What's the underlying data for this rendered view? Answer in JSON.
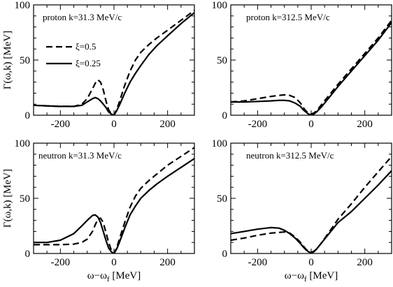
{
  "chart_data": [
    {
      "type": "line",
      "title": "proton k=31.3 MeV/c",
      "xlabel": "",
      "ylabel": "Γ(ω,k) [MeV]",
      "xlim": [
        -300,
        300
      ],
      "ylim": [
        0,
        100
      ],
      "xticks": [
        -200,
        0,
        200
      ],
      "yticks": [
        0,
        50,
        100
      ],
      "grid": false,
      "legend": {
        "placement": "upper-left",
        "entries": [
          {
            "label": "ξ=0.5",
            "style": "dashed"
          },
          {
            "label": "ξ=0.25",
            "style": "solid"
          }
        ]
      },
      "series": [
        {
          "name": "ξ=0.5",
          "style": "dashed",
          "x": [
            -300,
            -250,
            -200,
            -150,
            -120,
            -100,
            -80,
            -70,
            -60,
            -50,
            -40,
            -30,
            -20,
            -10,
            0,
            10,
            20,
            40,
            60,
            80,
            100,
            130,
            160,
            200,
            250,
            300
          ],
          "y": [
            9,
            8.5,
            8,
            8,
            10,
            15,
            24,
            29,
            32,
            30,
            23,
            13,
            5,
            1,
            0,
            5,
            12,
            27,
            40,
            50,
            57,
            64,
            70,
            77,
            86,
            95
          ]
        },
        {
          "name": "ξ=0.25",
          "style": "solid",
          "x": [
            -300,
            -250,
            -200,
            -150,
            -120,
            -100,
            -80,
            -70,
            -60,
            -50,
            -40,
            -30,
            -20,
            -10,
            0,
            10,
            20,
            40,
            60,
            80,
            100,
            130,
            160,
            200,
            250,
            300
          ],
          "y": [
            9,
            8.5,
            8,
            8,
            9,
            12,
            15,
            16,
            15,
            13,
            10,
            7,
            3,
            1,
            0,
            4,
            9,
            20,
            30,
            38,
            45,
            55,
            63,
            72,
            83,
            93
          ]
        }
      ]
    },
    {
      "type": "line",
      "title": "proton k=312.5 MeV/c",
      "xlabel": "",
      "ylabel": "",
      "xlim": [
        -300,
        300
      ],
      "ylim": [
        0,
        100
      ],
      "xticks": [
        -200,
        0,
        200
      ],
      "yticks": [
        0,
        50,
        100
      ],
      "grid": false,
      "series": [
        {
          "name": "ξ=0.5",
          "style": "dashed",
          "x": [
            -300,
            -250,
            -200,
            -150,
            -120,
            -100,
            -80,
            -60,
            -40,
            -30,
            -20,
            -10,
            0,
            10,
            20,
            40,
            60,
            80,
            100,
            150,
            200,
            250,
            300
          ],
          "y": [
            12,
            13,
            15,
            17,
            18,
            18.5,
            18,
            16,
            11,
            7,
            4,
            2,
            1,
            2,
            4,
            10,
            16,
            22,
            28,
            42,
            56,
            70,
            86
          ]
        },
        {
          "name": "ξ=0.25",
          "style": "solid",
          "x": [
            -300,
            -250,
            -200,
            -150,
            -120,
            -100,
            -80,
            -60,
            -40,
            -30,
            -20,
            -10,
            0,
            10,
            20,
            40,
            60,
            80,
            100,
            150,
            200,
            250,
            300
          ],
          "y": [
            12,
            12,
            12.5,
            13,
            13.5,
            13.5,
            13,
            11,
            8,
            5,
            3,
            1,
            0.5,
            1,
            3,
            8,
            14,
            20,
            26,
            40,
            54,
            68,
            84
          ]
        }
      ]
    },
    {
      "type": "line",
      "title": "neutron k=31.3 MeV/c",
      "xlabel": "ω−ω_f [MeV]",
      "ylabel": "Γ(ω,k) [MeV]",
      "xlim": [
        -300,
        300
      ],
      "ylim": [
        0,
        100
      ],
      "xticks": [
        -200,
        0,
        200
      ],
      "yticks": [
        0,
        50,
        100
      ],
      "grid": false,
      "series": [
        {
          "name": "ξ=0.5",
          "style": "dashed",
          "x": [
            -300,
            -250,
            -200,
            -150,
            -120,
            -100,
            -80,
            -70,
            -60,
            -50,
            -40,
            -30,
            -20,
            -10,
            0,
            10,
            20,
            40,
            60,
            80,
            100,
            130,
            160,
            200,
            250,
            300
          ],
          "y": [
            8,
            8,
            8,
            8.5,
            10,
            13,
            20,
            26,
            31,
            32,
            28,
            19,
            10,
            3,
            0,
            5,
            13,
            28,
            42,
            52,
            59,
            66,
            72,
            80,
            88,
            96
          ]
        },
        {
          "name": "ξ=0.25",
          "style": "solid",
          "x": [
            -300,
            -250,
            -200,
            -150,
            -120,
            -100,
            -80,
            -70,
            -60,
            -50,
            -40,
            -30,
            -20,
            -10,
            0,
            10,
            20,
            40,
            60,
            80,
            100,
            130,
            160,
            200,
            250,
            300
          ],
          "y": [
            10,
            10,
            12,
            18,
            25,
            30,
            34.5,
            35,
            33,
            28,
            20,
            12,
            5,
            1.5,
            0,
            4,
            10,
            23,
            35,
            43,
            50,
            57,
            63,
            70,
            78,
            86
          ]
        }
      ]
    },
    {
      "type": "line",
      "title": "neutron k=312.5 MeV/c",
      "xlabel": "ω−ω_f [MeV]",
      "ylabel": "",
      "xlim": [
        -300,
        300
      ],
      "ylim": [
        0,
        100
      ],
      "xticks": [
        -200,
        0,
        200
      ],
      "yticks": [
        0,
        50,
        100
      ],
      "grid": false,
      "series": [
        {
          "name": "ξ=0.5",
          "style": "dashed",
          "x": [
            -300,
            -250,
            -200,
            -150,
            -100,
            -80,
            -60,
            -40,
            -30,
            -20,
            -10,
            0,
            10,
            20,
            40,
            60,
            80,
            100,
            150,
            200,
            250,
            300
          ],
          "y": [
            12,
            14,
            16.5,
            18.5,
            19.5,
            18.5,
            15,
            10,
            7,
            4,
            2,
            1,
            2,
            4,
            10,
            17,
            24,
            31,
            45,
            60,
            74,
            88
          ]
        },
        {
          "name": "ξ=0.25",
          "style": "solid",
          "x": [
            -300,
            -250,
            -200,
            -150,
            -120,
            -100,
            -80,
            -60,
            -40,
            -30,
            -20,
            -10,
            0,
            10,
            20,
            40,
            60,
            80,
            100,
            150,
            200,
            250,
            300
          ],
          "y": [
            18,
            20,
            22,
            23.5,
            23,
            21,
            18,
            14,
            9,
            6,
            3.5,
            1.5,
            0.5,
            1.5,
            4,
            10,
            16,
            22,
            28,
            38,
            50,
            62,
            75
          ]
        }
      ]
    }
  ]
}
